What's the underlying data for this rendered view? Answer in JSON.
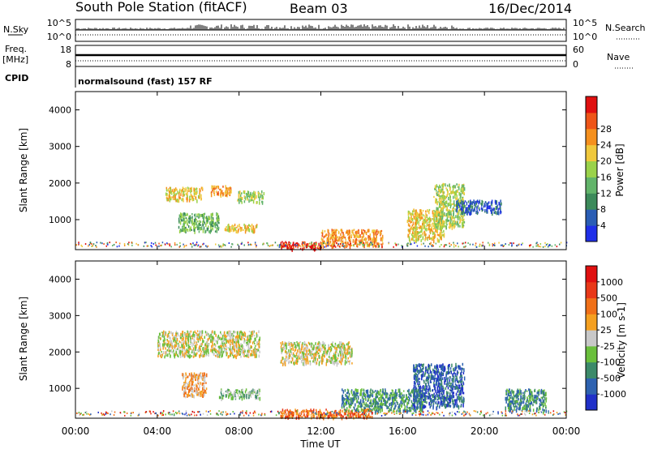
{
  "header": {
    "title": "South Pole Station (fitACF)",
    "beam": "Beam 03",
    "date": "16/Dec/2014"
  },
  "status_panel": {
    "nsky_label": "N.Sky",
    "nsky_ticks": [
      "10^5",
      "10^0"
    ],
    "nsearch_label": "N.Search",
    "nsearch_ticks": [
      "10^5",
      "10^0"
    ],
    "freq_label": "Freq.",
    "freq_unit": "[MHz]",
    "freq_ticks": [
      "18",
      "8"
    ],
    "nave_label": "Nave",
    "nave_ticks": [
      "60",
      "0"
    ],
    "cpid_label": "CPID",
    "cpid_value": "normalsound (fast) 157 RF"
  },
  "chart_data": [
    {
      "type": "heatmap",
      "parameter": "power",
      "ylabel": "Slant Range [km]",
      "ylim": [
        180,
        4500
      ],
      "yticks": [
        "1000",
        "2000",
        "3000",
        "4000"
      ],
      "colorbar": {
        "label": "Power [dB]",
        "ticks": [
          "4",
          "8",
          "12",
          "16",
          "20",
          "24",
          "28"
        ],
        "colors": [
          "#1f2fe8",
          "#2a5db5",
          "#3c8a5a",
          "#62b46a",
          "#9ad24a",
          "#f0c83c",
          "#f5901e",
          "#ee5518",
          "#e01010"
        ]
      },
      "regions": [
        {
          "t0": 4.4,
          "t1": 6.2,
          "r0": 1550,
          "r1": 1900,
          "level": 5
        },
        {
          "t0": 6.6,
          "t1": 7.6,
          "r0": 1680,
          "r1": 1950,
          "level": 6
        },
        {
          "t0": 7.9,
          "t1": 9.2,
          "r0": 1500,
          "r1": 1800,
          "level": 4
        },
        {
          "t0": 5.0,
          "t1": 7.0,
          "r0": 700,
          "r1": 1200,
          "level": 3
        },
        {
          "t0": 7.2,
          "t1": 8.9,
          "r0": 700,
          "r1": 900,
          "level": 5
        },
        {
          "t0": 10.0,
          "t1": 12.0,
          "r0": 220,
          "r1": 420,
          "level": 8
        },
        {
          "t0": 12.0,
          "t1": 15.0,
          "r0": 300,
          "r1": 750,
          "level": 6
        },
        {
          "t0": 16.2,
          "t1": 18.0,
          "r0": 450,
          "r1": 1300,
          "level": 5
        },
        {
          "t0": 17.5,
          "t1": 19.0,
          "r0": 800,
          "r1": 2000,
          "level": 4
        },
        {
          "t0": 18.6,
          "t1": 20.8,
          "r0": 1200,
          "r1": 1550,
          "level": 1
        }
      ]
    },
    {
      "type": "heatmap",
      "parameter": "velocity",
      "xlabel": "Time UT",
      "ylabel": "Slant Range [km]",
      "ylim": [
        180,
        4500
      ],
      "yticks": [
        "1000",
        "2000",
        "3000",
        "4000"
      ],
      "xticks": [
        "00:00",
        "04:00",
        "08:00",
        "12:00",
        "16:00",
        "20:00",
        "00:00"
      ],
      "xlim": [
        0,
        24
      ],
      "colorbar": {
        "label": "Velocity [m s-1]",
        "ticks": [
          "1000",
          "500",
          "100",
          "25",
          "-25",
          "-100",
          "-500",
          "-1000"
        ],
        "colors": [
          "#2030c8",
          "#2e62b0",
          "#3c8a6a",
          "#6abf3c",
          "#c8c8c8",
          "#f5a020",
          "#f07018",
          "#e83818",
          "#e01010"
        ]
      },
      "regions": [
        {
          "t0": 4.0,
          "t1": 9.0,
          "r0": 1900,
          "r1": 2600,
          "level": 4
        },
        {
          "t0": 10.0,
          "t1": 13.5,
          "r0": 1700,
          "r1": 2300,
          "level": 4
        },
        {
          "t0": 5.2,
          "t1": 6.4,
          "r0": 800,
          "r1": 1450,
          "level": 5
        },
        {
          "t0": 7.0,
          "t1": 9.0,
          "r0": 750,
          "r1": 1000,
          "level": 3
        },
        {
          "t0": 10.0,
          "t1": 14.5,
          "r0": 220,
          "r1": 450,
          "level": 6
        },
        {
          "t0": 13.0,
          "t1": 17.0,
          "r0": 400,
          "r1": 1000,
          "level": 2
        },
        {
          "t0": 16.5,
          "t1": 19.0,
          "r0": 500,
          "r1": 1700,
          "level": 1
        },
        {
          "t0": 21.0,
          "t1": 23.0,
          "r0": 400,
          "r1": 1000,
          "level": 2
        }
      ]
    }
  ]
}
